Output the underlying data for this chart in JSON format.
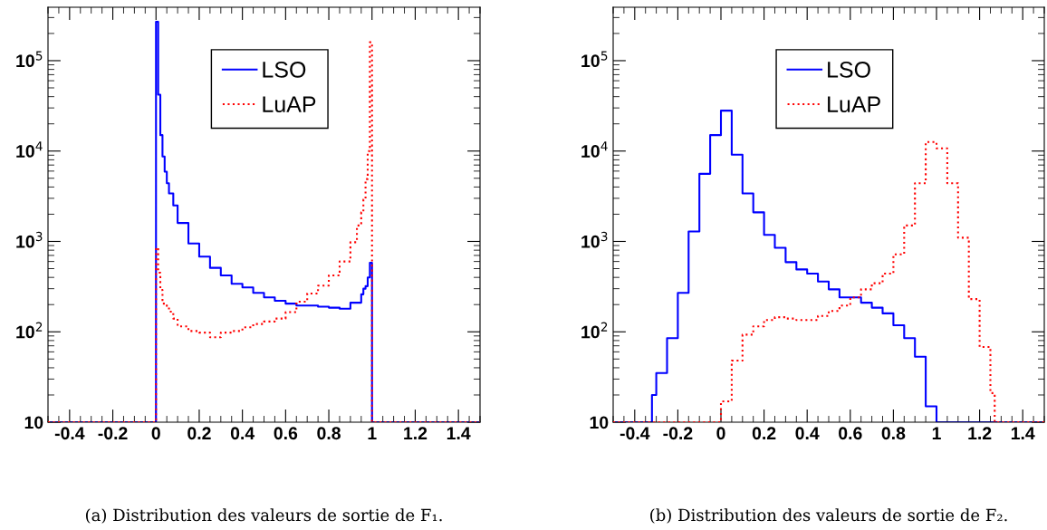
{
  "chart_data": [
    {
      "type": "histogram",
      "log": "y",
      "grid": false,
      "legend": "top",
      "annotations": [
        "(a) Distribution des valeurs de sortie de F₁."
      ],
      "bins": [
        -0.5,
        0,
        0.01,
        0.02,
        0.03,
        0.04,
        0.05,
        0.06,
        0.08,
        0.1,
        0.15,
        0.2,
        0.25,
        0.3,
        0.35,
        0.4,
        0.45,
        0.5,
        0.55,
        0.6,
        0.65,
        0.7,
        0.75,
        0.8,
        0.85,
        0.9,
        0.93,
        0.95,
        0.96,
        0.97,
        0.98,
        0.99,
        1.0,
        1.5
      ],
      "series": [
        {
          "name": "LSO",
          "color": "#0000ff",
          "line_style": "solid",
          "values": [
            10,
            270000,
            42000,
            15000,
            8700,
            5900,
            4400,
            3400,
            2500,
            1600,
            950,
            680,
            510,
            420,
            340,
            310,
            270,
            240,
            220,
            205,
            195,
            195,
            190,
            185,
            180,
            210,
            210,
            260,
            300,
            320,
            400,
            580,
            10
          ]
        },
        {
          "name": "LuAP",
          "color": "#ff0000",
          "line_style": "dotted",
          "values": [
            10,
            850,
            450,
            290,
            205,
            205,
            190,
            167,
            140,
            115,
            102,
            98,
            87,
            98,
            102,
            112,
            122,
            130,
            140,
            165,
            215,
            265,
            325,
            420,
            600,
            980,
            1500,
            2100,
            2900,
            4900,
            10000,
            160000,
            10
          ]
        }
      ],
      "xlim": [
        -0.5,
        1.5
      ],
      "xticks": [
        -0.4,
        -0.2,
        0,
        0.2,
        0.4,
        0.6,
        0.8,
        1,
        1.2,
        1.4
      ],
      "ylim": [
        10,
        390000
      ],
      "yticks": [
        10,
        {
          "value": 100,
          "label": "10$^{2}$"
        },
        {
          "value": 1000,
          "label": "10$^{3}$"
        },
        {
          "value": 10000,
          "label": "10$^{4}$"
        },
        {
          "value": 100000,
          "label": "10$^{5}$"
        }
      ]
    },
    {
      "type": "histogram",
      "log": "y",
      "grid": false,
      "legend": "top",
      "annotations": [
        "(b) Distribution des valeurs de sortie de F₂."
      ],
      "bins": [
        -0.5,
        -0.32,
        -0.3,
        -0.25,
        -0.2,
        -0.15,
        -0.1,
        -0.05,
        0,
        0.05,
        0.1,
        0.15,
        0.2,
        0.25,
        0.3,
        0.35,
        0.4,
        0.45,
        0.5,
        0.55,
        0.6,
        0.65,
        0.7,
        0.75,
        0.8,
        0.85,
        0.9,
        0.95,
        1.0,
        1.05,
        1.1,
        1.15,
        1.2,
        1.25,
        1.27,
        1.5
      ],
      "series": [
        {
          "name": "LSO",
          "color": "#0000ff",
          "line_style": "solid",
          "values": [
            10,
            20,
            35,
            85,
            270,
            1290,
            5600,
            15000,
            28000,
            9100,
            3400,
            2100,
            1180,
            850,
            590,
            490,
            440,
            360,
            295,
            240,
            240,
            210,
            185,
            160,
            118,
            85,
            53,
            15,
            10,
            10,
            10,
            10,
            10,
            10,
            10
          ]
        },
        {
          "name": "LuAP",
          "color": "#ff0000",
          "line_style": "dotted",
          "values": [
            10,
            10,
            10,
            10,
            10,
            10,
            10,
            10,
            17,
            48,
            93,
            115,
            135,
            145,
            140,
            135,
            135,
            150,
            170,
            195,
            240,
            295,
            345,
            440,
            720,
            1500,
            4400,
            12600,
            10700,
            4400,
            1100,
            230,
            68,
            21,
            10
          ]
        }
      ],
      "xlim": [
        -0.5,
        1.5
      ],
      "xticks": [
        -0.4,
        -0.2,
        0,
        0.2,
        0.4,
        0.6,
        0.8,
        1,
        1.2,
        1.4
      ],
      "ylim": [
        10,
        390000
      ],
      "yticks": [
        10,
        {
          "value": 100,
          "label": "10$^{2}$"
        },
        {
          "value": 1000,
          "label": "10$^{3}$"
        },
        {
          "value": 10000,
          "label": "10$^{4}$"
        },
        {
          "value": 100000,
          "label": "10$^{5}$"
        }
      ]
    }
  ]
}
